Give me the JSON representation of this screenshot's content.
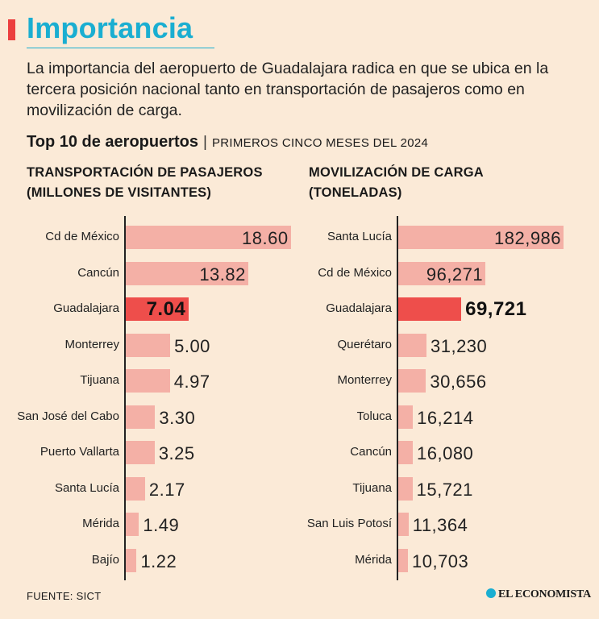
{
  "header": {
    "title": "Importancia",
    "description": "La importancia del aeropuerto de Guadalajara radica en que se ubica en la tercera posición nacional tanto en transportación de pasajeros como en movilización de carga.",
    "subtitle_bold": "Top 10 de aeropuertos",
    "separator": "|",
    "subtitle_period": "PRIMEROS CINCO MESES DEL 2024",
    "accent_color": "#ec3f3f",
    "title_color": "#1aaed1"
  },
  "chart_data": [
    {
      "type": "bar",
      "orientation": "horizontal",
      "title_line1": "TRANSPORTACIÓN DE PASAJEROS",
      "title_line2": "(MILLONES DE VISITANTES)",
      "categories": [
        "Cd de México",
        "Cancún",
        "Guadalajara",
        "Monterrey",
        "Tijuana",
        "San José del Cabo",
        "Puerto Vallarta",
        "Santa Lucía",
        "Mérida",
        "Bajío"
      ],
      "values": [
        18.6,
        13.82,
        7.04,
        5.0,
        4.97,
        3.3,
        3.25,
        2.17,
        1.49,
        1.22
      ],
      "value_labels": [
        "18.60",
        "13.82",
        "7.04",
        "5.00",
        "4.97",
        "3.30",
        "3.25",
        "2.17",
        "1.49",
        "1.22"
      ],
      "highlight": "Guadalajara",
      "xlim": [
        0,
        18.6
      ]
    },
    {
      "type": "bar",
      "orientation": "horizontal",
      "title_line1": "MOVILIZACIÓN DE CARGA",
      "title_line2": "(TONELADAS)",
      "categories": [
        "Santa Lucía",
        "Cd de México",
        "Guadalajara",
        "Querétaro",
        "Monterrey",
        "Toluca",
        "Cancún",
        "Tijuana",
        "San Luis Potosí",
        "Mérida"
      ],
      "values": [
        182986,
        96271,
        69721,
        31230,
        30656,
        16214,
        16080,
        15721,
        11364,
        10703
      ],
      "value_labels": [
        "182,986",
        "96,271",
        "69,721",
        "31,230",
        "30,656",
        "16,214",
        "16,080",
        "15,721",
        "11,364",
        "10,703"
      ],
      "highlight": "Guadalajara",
      "xlim": [
        0,
        182986
      ]
    }
  ],
  "footer": {
    "source": "FUENTE: SICT",
    "logo_text": "EL ECONOMISTA"
  },
  "colors": {
    "bar": "#f4b0a6",
    "bar_highlight": "#ee4e4b",
    "background": "#fbead7"
  }
}
